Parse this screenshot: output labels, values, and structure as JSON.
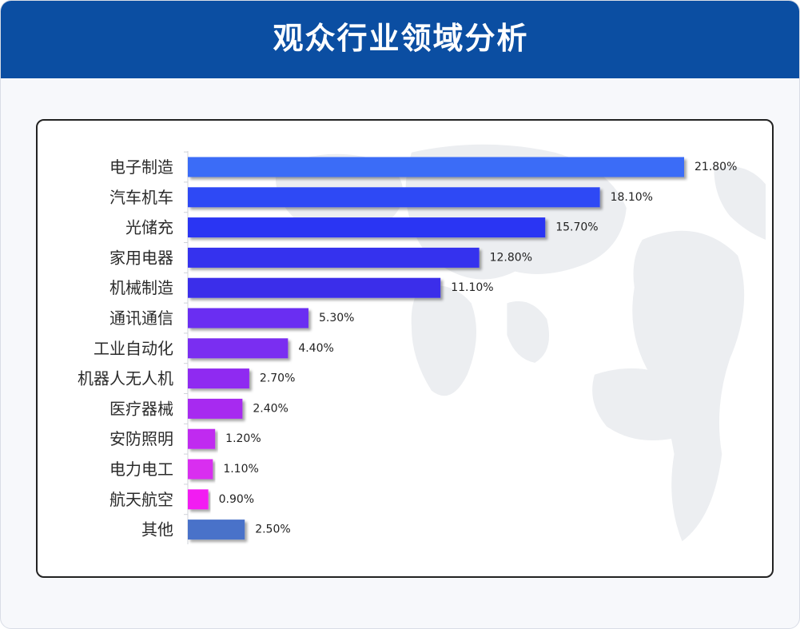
{
  "header": {
    "title": "观众行业领域分析"
  },
  "chart_data": {
    "type": "bar",
    "orientation": "horizontal",
    "title": "",
    "xlabel": "",
    "ylabel": "",
    "xlim": [
      0,
      21.8
    ],
    "grid": false,
    "legend": "none",
    "categories": [
      "电子制造",
      "汽车机车",
      "光储充",
      "家用电器",
      "机械制造",
      "通讯通信",
      "工业自动化",
      "机器人无人机",
      "医疗器械",
      "安防照明",
      "电力电工",
      "航天航空",
      "其他"
    ],
    "values": [
      21.8,
      18.1,
      15.7,
      12.8,
      11.1,
      5.3,
      4.4,
      2.7,
      2.4,
      1.2,
      1.1,
      0.9,
      2.5
    ],
    "value_labels": [
      "21.80%",
      "18.10%",
      "15.70%",
      "12.80%",
      "11.10%",
      "5.30%",
      "4.40%",
      "2.70%",
      "2.40%",
      "1.20%",
      "1.10%",
      "0.90%",
      "2.50%"
    ],
    "colors": [
      "#3a6cf7",
      "#2d49f5",
      "#2a35f3",
      "#3531ee",
      "#3a2eea",
      "#6a2ef2",
      "#7a2df1",
      "#8f2cf1",
      "#a72bf0",
      "#c02bf0",
      "#d92ff0",
      "#f21ff2",
      "#4a72c9"
    ]
  }
}
